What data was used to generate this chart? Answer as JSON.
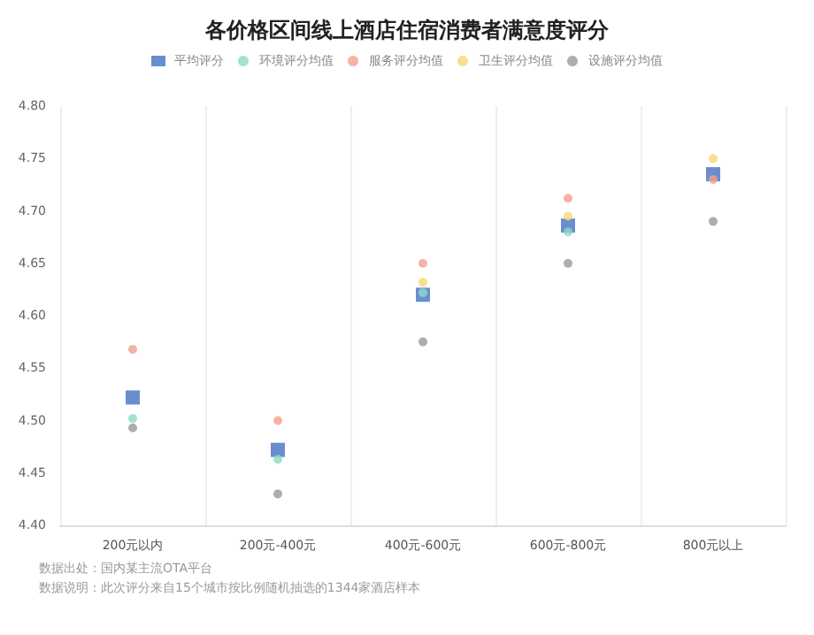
{
  "chart_data": {
    "type": "scatter",
    "title": "各价格区间线上酒店住宿消费者满意度评分",
    "categories": [
      "200元以内",
      "200元-400元",
      "400元-600元",
      "600元-800元",
      "800元以上"
    ],
    "series": [
      {
        "name": "平均评分",
        "color": "#4472c4",
        "marker": "square",
        "values": [
          4.522,
          4.472,
          4.62,
          4.686,
          4.735
        ]
      },
      {
        "name": "环境评分均值",
        "color": "#8fd9c0",
        "values": [
          4.502,
          4.463,
          4.622,
          4.68,
          null
        ]
      },
      {
        "name": "服务评分均值",
        "color": "#f4a08a",
        "values": [
          4.568,
          4.5,
          4.65,
          4.712,
          4.73
        ]
      },
      {
        "name": "卫生评分均值",
        "color": "#f7d774",
        "values": [
          null,
          null,
          4.632,
          4.695,
          4.75
        ]
      },
      {
        "name": "设施评分均值",
        "color": "#999999",
        "values": [
          4.493,
          4.43,
          4.575,
          4.65,
          4.69
        ]
      }
    ],
    "ylim": [
      4.4,
      4.8
    ],
    "yticks": [
      {
        "value": 4.4,
        "label": "4.40"
      },
      4.45,
      {
        "value": 4.5,
        "label": "4.50"
      },
      4.55,
      {
        "value": 4.6,
        "label": "4.60"
      },
      4.65,
      {
        "value": 4.7,
        "label": "4.70"
      },
      4.75,
      {
        "value": 4.8,
        "label": "4.80"
      }
    ],
    "grid": "x",
    "legend": "top",
    "marker": "circle",
    "annotations": [
      "数据出处：国内某主流OTA平台",
      "数据说明：此次评分来自15个城市按比例随机抽选的1344家酒店样本"
    ]
  }
}
